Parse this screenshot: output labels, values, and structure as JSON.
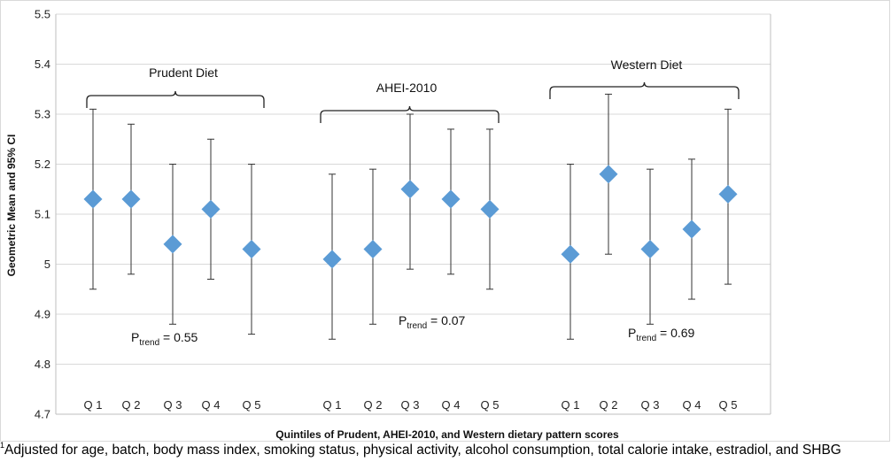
{
  "chart_data": {
    "type": "scatter",
    "subtype": "point-estimate-with-error-bars",
    "ylabel": "Geometric Mean and 95% CI",
    "xlabel": "Quintiles of Prudent, AHEI-2010, and Western dietary pattern scores",
    "ylim": [
      4.7,
      5.5
    ],
    "y_ticks": [
      "5.5",
      "5.4",
      "5.3",
      "5.2",
      "5.1",
      "5",
      "4.9",
      "4.8",
      "4.7"
    ],
    "y_tick_values": [
      5.5,
      5.4,
      5.3,
      5.2,
      5.1,
      5.0,
      4.9,
      4.8,
      4.7
    ],
    "grid": true,
    "marker": "diamond",
    "marker_color": "#5b9bd5",
    "groups": [
      {
        "name": "Prudent Diet",
        "p_prefix": "P",
        "p_sub": "trend",
        "p_value": "= 0.55",
        "categories": [
          "Q 1",
          "Q 2",
          "Q 3",
          "Q 4",
          "Q 5"
        ],
        "values": [
          5.13,
          5.13,
          5.04,
          5.11,
          5.03
        ],
        "lower": [
          4.95,
          4.98,
          4.88,
          4.97,
          4.86
        ],
        "upper": [
          5.31,
          5.28,
          5.2,
          5.25,
          5.2
        ]
      },
      {
        "name": "AHEI-2010",
        "p_prefix": "P",
        "p_sub": "trend",
        "p_value": "= 0.07",
        "categories": [
          "Q 1",
          "Q 2",
          "Q 3",
          "Q 4",
          "Q 5"
        ],
        "values": [
          5.01,
          5.03,
          5.15,
          5.13,
          5.11
        ],
        "lower": [
          4.85,
          4.88,
          4.99,
          4.98,
          4.95
        ],
        "upper": [
          5.18,
          5.19,
          5.3,
          5.27,
          5.27
        ]
      },
      {
        "name": "Western Diet",
        "p_prefix": "P",
        "p_sub": "trend",
        "p_value": "= 0.69",
        "categories": [
          "Q 1",
          "Q 2",
          "Q 3",
          "Q 4",
          "Q 5"
        ],
        "values": [
          5.02,
          5.18,
          5.03,
          5.07,
          5.14
        ],
        "lower": [
          4.85,
          5.02,
          4.88,
          4.93,
          4.96
        ],
        "upper": [
          5.2,
          5.34,
          5.19,
          5.21,
          5.31
        ]
      }
    ]
  },
  "footnote": {
    "marker": "1",
    "text": "Adjusted for age, batch, body mass index, smoking status, physical activity, alcohol consumption, total calorie intake, estradiol, and SHBG"
  }
}
